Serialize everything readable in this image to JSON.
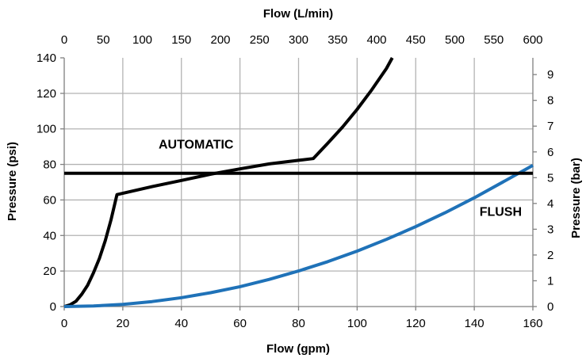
{
  "chart_data": {
    "type": "line",
    "xlabel": "Flow (gpm)",
    "x2label": "Flow (L/min)",
    "ylabel": "Pressure  (psi)",
    "y2label": "Pressure  (bar)",
    "xlim": [
      0,
      160
    ],
    "ylim": [
      0,
      140
    ],
    "x2lim": [
      0,
      600
    ],
    "y2lim": [
      0,
      9.65
    ],
    "x_ticks": [
      0,
      20,
      40,
      60,
      80,
      100,
      120,
      140,
      160
    ],
    "y_ticks": [
      0,
      20,
      40,
      60,
      80,
      100,
      120,
      140
    ],
    "x2_ticks": [
      0,
      50,
      100,
      150,
      200,
      250,
      300,
      350,
      400,
      450,
      500,
      550,
      600
    ],
    "y2_ticks": [
      0,
      1,
      2,
      3,
      4,
      5,
      6,
      7,
      8,
      9
    ],
    "grid": true,
    "colors": {
      "automatic": "#000000",
      "flush": "#1f72b8",
      "reference": "#000000",
      "grid": "#b3b3b3",
      "axis": "#808080"
    },
    "series": [
      {
        "name": "AUTOMATIC",
        "color": "#000000",
        "points": [
          [
            0,
            0
          ],
          [
            2,
            1
          ],
          [
            4,
            3
          ],
          [
            6,
            7
          ],
          [
            8,
            12
          ],
          [
            10,
            19
          ],
          [
            12,
            27
          ],
          [
            14,
            37
          ],
          [
            16,
            49
          ],
          [
            18,
            63
          ],
          [
            30,
            67.5
          ],
          [
            40,
            71
          ],
          [
            50,
            74.5
          ],
          [
            60,
            77.5
          ],
          [
            70,
            80.3
          ],
          [
            80,
            82.3
          ],
          [
            85,
            83.3
          ],
          [
            90,
            92
          ],
          [
            95,
            101
          ],
          [
            100,
            111
          ],
          [
            105,
            122
          ],
          [
            110,
            134
          ],
          [
            112,
            140
          ]
        ]
      },
      {
        "name": "FLUSH",
        "color": "#1f72b8",
        "points": [
          [
            0,
            0
          ],
          [
            10,
            0.3
          ],
          [
            20,
            1.2
          ],
          [
            30,
            2.8
          ],
          [
            40,
            5
          ],
          [
            50,
            7.8
          ],
          [
            60,
            11.2
          ],
          [
            70,
            15.3
          ],
          [
            80,
            20
          ],
          [
            90,
            25.3
          ],
          [
            100,
            31.2
          ],
          [
            110,
            37.8
          ],
          [
            120,
            45
          ],
          [
            130,
            52.8
          ],
          [
            140,
            61.2
          ],
          [
            150,
            70.3
          ],
          [
            160,
            79.5
          ]
        ]
      },
      {
        "color": "#000000",
        "points": [
          [
            0,
            75
          ],
          [
            160,
            75
          ]
        ]
      }
    ],
    "annotations": [
      {
        "text": "AUTOMATIC",
        "x": 45,
        "y": 89
      },
      {
        "text": "FLUSH",
        "x": 149,
        "y": 51
      }
    ]
  }
}
